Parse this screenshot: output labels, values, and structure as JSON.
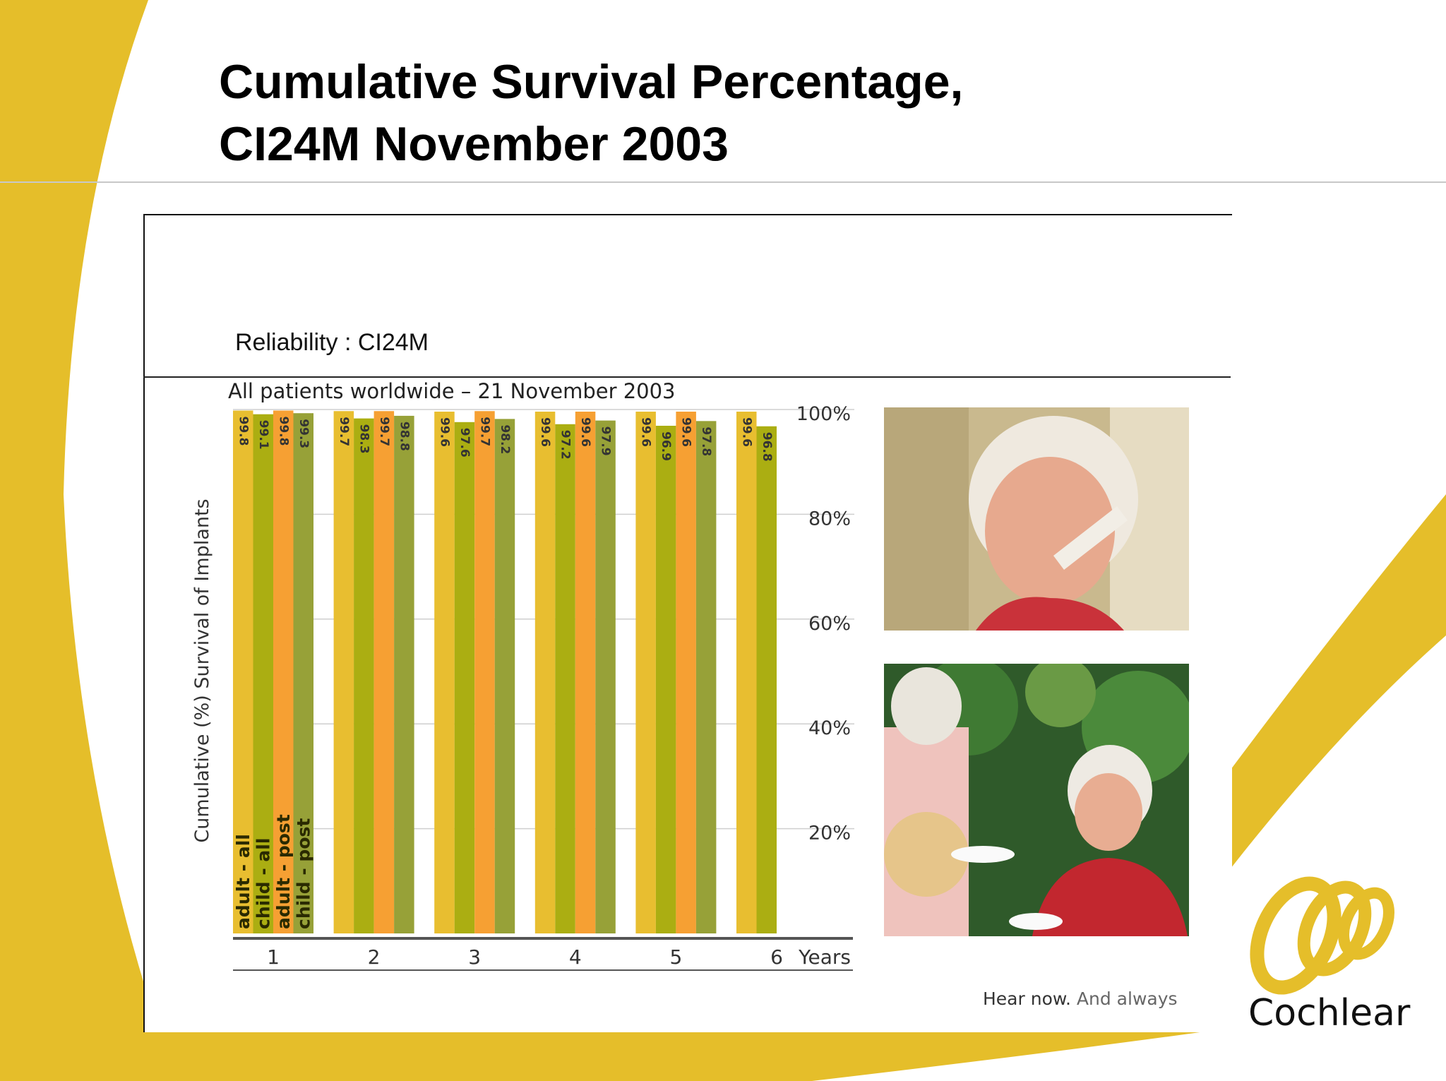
{
  "slide": {
    "title_line1": "Cumulative Survival Percentage,",
    "title_line2": "CI24M November 2003"
  },
  "panel": {
    "reliability_label": "Reliability : CI24M"
  },
  "colors": {
    "slide_yellow": "#E5BE2A",
    "adult_all": "#E8BE30",
    "child_all": "#ABAE12",
    "adult_post": "#F6A033",
    "child_post": "#97A138",
    "axis": "#555555"
  },
  "chart_data": {
    "type": "bar",
    "title": "All patients worldwide – 21 November 2003",
    "ylabel": "Cumulative (%) Survival of Implants",
    "xlabel": "Years",
    "categories": [
      "1",
      "2",
      "3",
      "4",
      "5",
      "6"
    ],
    "ylim": [
      0,
      100
    ],
    "yticks": [
      "20%",
      "40%",
      "60%",
      "80%",
      "100%"
    ],
    "grid": true,
    "legend": "vertical labels inside year 1 bars",
    "series": [
      {
        "name": "adult - all",
        "values": [
          99.8,
          99.7,
          99.6,
          99.6,
          99.6,
          99.6
        ],
        "labels": [
          "99.8",
          "99.7",
          "99.6",
          "99.6",
          "99.6",
          "99.6"
        ]
      },
      {
        "name": "child - all",
        "values": [
          99.1,
          98.3,
          97.6,
          97.2,
          96.9,
          96.8
        ],
        "labels": [
          "99.1",
          "98.3",
          "97.6",
          "97.2",
          "96.9",
          "96.8"
        ]
      },
      {
        "name": "adult - post",
        "values": [
          99.8,
          99.7,
          99.7,
          99.6,
          99.6,
          null
        ],
        "labels": [
          "99.8",
          "99.7",
          "99.7",
          "99.6",
          "99.6",
          ""
        ]
      },
      {
        "name": "child - post",
        "values": [
          99.3,
          98.8,
          98.2,
          97.9,
          97.8,
          null
        ],
        "labels": [
          "99.3",
          "98.8",
          "98.2",
          "97.9",
          "97.8",
          ""
        ]
      }
    ]
  },
  "photos": [
    {
      "icon": "woman-on-phone-photo"
    },
    {
      "icon": "women-having-tea-photo"
    }
  ],
  "branding": {
    "tagline_bold": "Hear now.",
    "tagline_light": "And always",
    "logo_text": "Cochlear",
    "logo_icon": "cochlear-swirl-logo"
  }
}
